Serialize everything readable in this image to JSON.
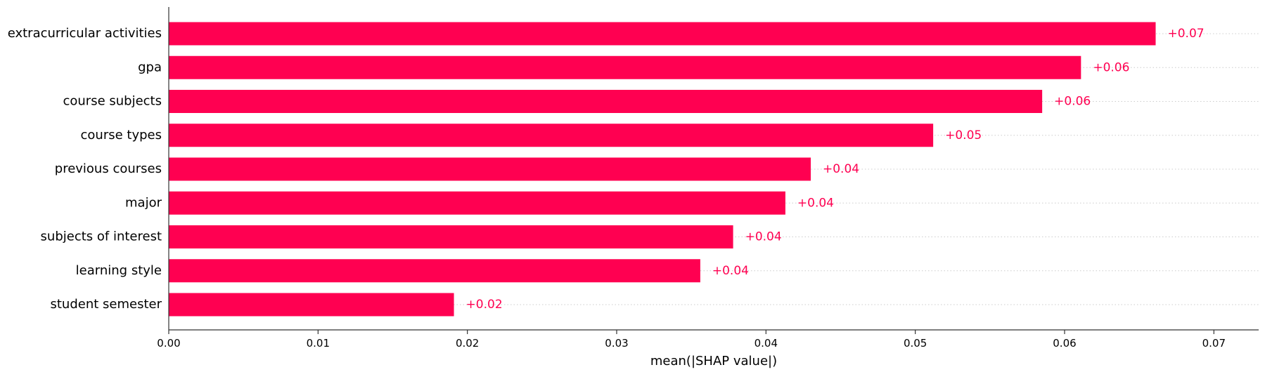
{
  "chart_data": {
    "type": "bar",
    "orientation": "horizontal",
    "categories": [
      "extracurricular activities",
      "gpa",
      "course subjects",
      "course types",
      "previous courses",
      "major",
      "subjects of interest",
      "learning style",
      "student semester"
    ],
    "values": [
      0.0661,
      0.0611,
      0.0585,
      0.0512,
      0.043,
      0.0413,
      0.0378,
      0.0356,
      0.0191
    ],
    "data_labels": [
      "+0.07",
      "+0.06",
      "+0.06",
      "+0.05",
      "+0.04",
      "+0.04",
      "+0.04",
      "+0.04",
      "+0.02"
    ],
    "xlabel": "mean(|SHAP value|)",
    "ylabel": "",
    "xlim": [
      0,
      0.073
    ],
    "xticks": [
      0.0,
      0.01,
      0.02,
      0.03,
      0.04,
      0.05,
      0.06,
      0.07
    ],
    "xtick_labels": [
      "0.00",
      "0.01",
      "0.02",
      "0.03",
      "0.04",
      "0.05",
      "0.06",
      "0.07"
    ],
    "grid": "dotted horizontal guide lines behind bars",
    "legend": "none",
    "colors": {
      "bar": "#ff0051",
      "label": "#ff0051",
      "axis": "#333333",
      "guide": "#cccccc"
    }
  }
}
